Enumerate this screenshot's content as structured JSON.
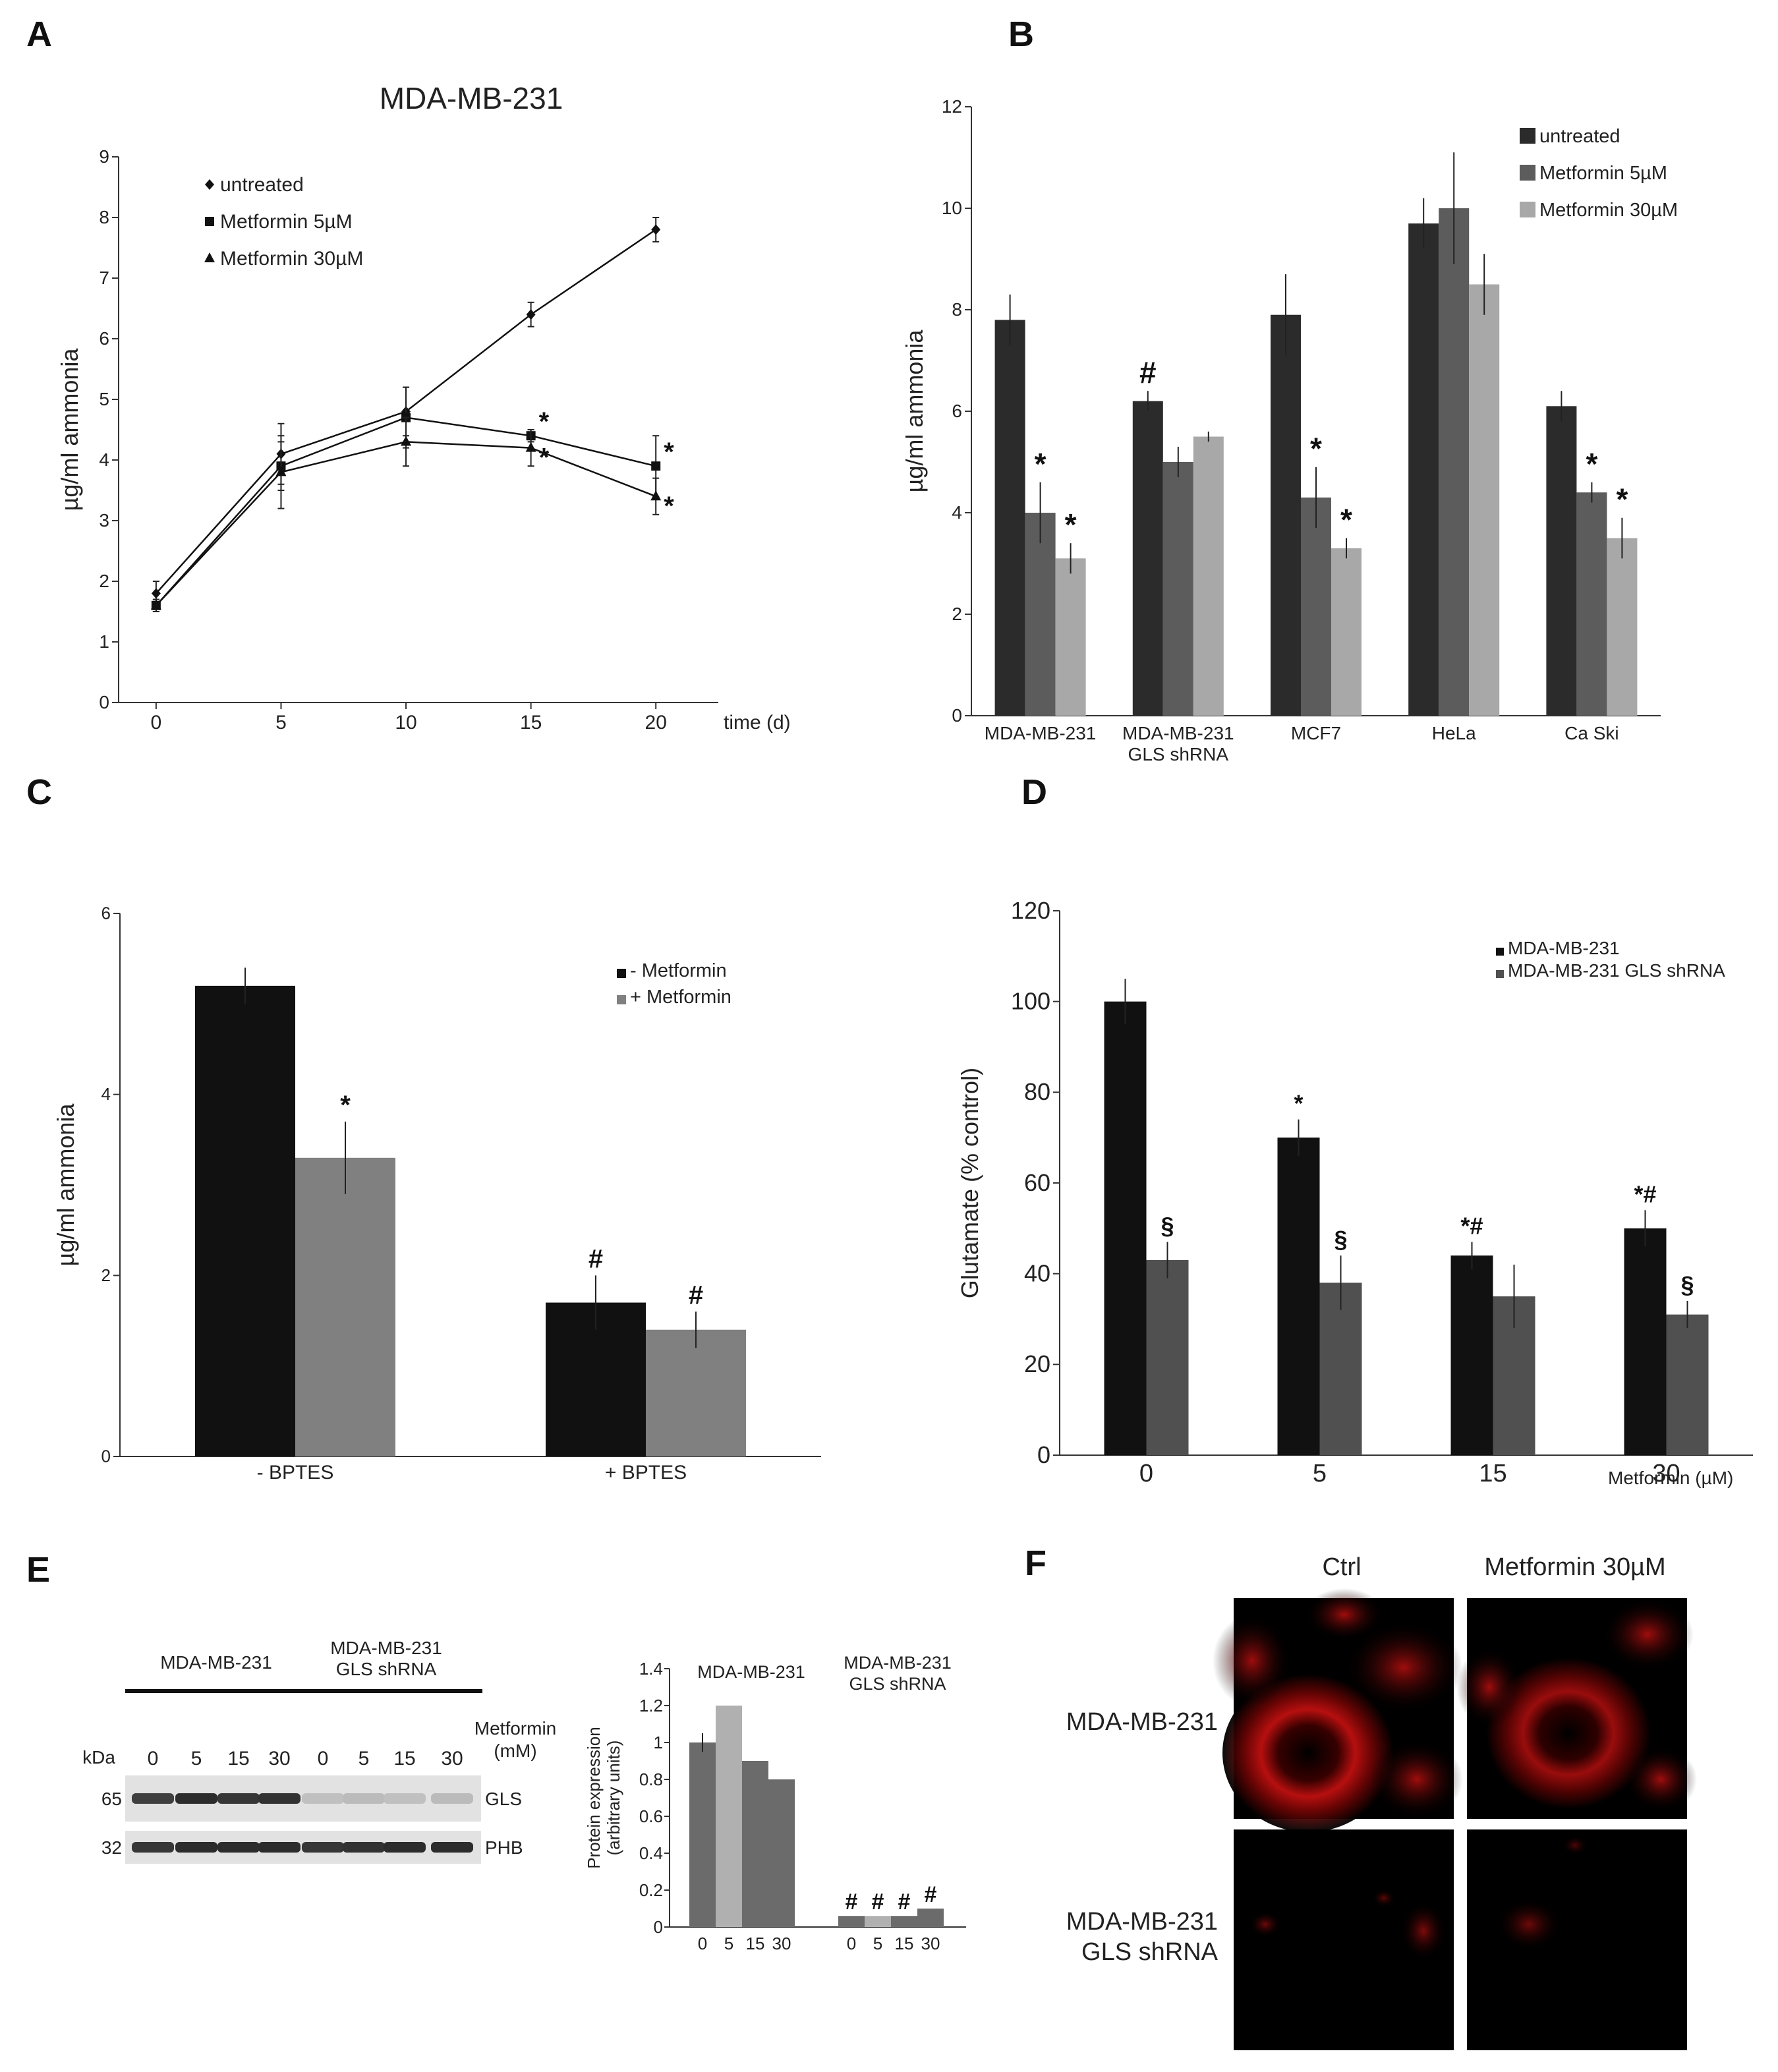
{
  "panel_letters": [
    "A",
    "B",
    "C",
    "D",
    "E",
    "F"
  ],
  "colors": {
    "black": "#111111",
    "dark": "#2b2b2b",
    "mid": "#5c5c5c",
    "light": "#a8a8a8",
    "d_grey": "#505050",
    "c_grey": "#808080",
    "e_dark": "#6b6b6b",
    "e_light": "#b0b0b0",
    "red": "#d01818"
  },
  "chart_data": [
    {
      "id": "A",
      "type": "line",
      "title": "MDA-MB-231",
      "xlabel": "time (d)",
      "ylabel": "µg/ml ammonia",
      "x": [
        0,
        5,
        10,
        15,
        20
      ],
      "xlim": [
        -1.5,
        22.5
      ],
      "ylim": [
        0,
        9
      ],
      "yticks": [
        0,
        1,
        2,
        3,
        4,
        5,
        6,
        7,
        8,
        9
      ],
      "legend_position": "top-left",
      "series": [
        {
          "name": "untreated",
          "marker": "diamond",
          "values": [
            1.8,
            4.1,
            4.8,
            6.4,
            7.8
          ],
          "errors": [
            0.2,
            0.5,
            0.4,
            0.2,
            0.2
          ],
          "annotations": [
            "",
            "",
            "",
            "",
            ""
          ]
        },
        {
          "name": "Metformin 5µM",
          "marker": "square",
          "values": [
            1.6,
            3.9,
            4.7,
            4.4,
            3.9
          ],
          "errors": [
            0.1,
            0.4,
            0.5,
            0.1,
            0.5
          ],
          "annotations": [
            "",
            "",
            "",
            "*",
            "*"
          ]
        },
        {
          "name": "Metformin 30µM",
          "marker": "triangle",
          "values": [
            1.6,
            3.8,
            4.3,
            4.2,
            3.4
          ],
          "errors": [
            0.1,
            0.6,
            0.4,
            0.3,
            0.3
          ],
          "annotations": [
            "",
            "",
            "",
            "*",
            "*"
          ]
        }
      ]
    },
    {
      "id": "B",
      "type": "bar",
      "xlabel": "",
      "ylabel": "µg/ml ammonia",
      "categories": [
        "MDA-MB-231",
        "MDA-MB-231\nGLS shRNA",
        "MCF7",
        "HeLa",
        "Ca Ski"
      ],
      "ylim": [
        0,
        12
      ],
      "yticks": [
        0,
        2,
        4,
        6,
        8,
        10,
        12
      ],
      "legend_position": "top-right",
      "series": [
        {
          "name": "untreated",
          "values": [
            7.8,
            6.2,
            7.9,
            9.7,
            6.1
          ],
          "errors": [
            0.5,
            0.2,
            0.8,
            0.5,
            0.3
          ],
          "annotations": [
            "",
            "#",
            "",
            "",
            ""
          ]
        },
        {
          "name": "Metformin 5µM",
          "values": [
            4.0,
            5.0,
            4.3,
            10.0,
            4.4
          ],
          "errors": [
            0.6,
            0.3,
            0.6,
            1.1,
            0.2
          ],
          "annotations": [
            "*",
            "",
            "*",
            "",
            "*"
          ]
        },
        {
          "name": "Metformin 30µM",
          "values": [
            3.1,
            5.5,
            3.3,
            8.5,
            3.5
          ],
          "errors": [
            0.3,
            0.1,
            0.2,
            0.6,
            0.4
          ],
          "annotations": [
            "*",
            "",
            "*",
            "",
            "*"
          ]
        }
      ]
    },
    {
      "id": "C",
      "type": "bar",
      "xlabel": "",
      "ylabel": "µg/ml ammonia",
      "categories": [
        "- BPTES",
        "+ BPTES"
      ],
      "ylim": [
        0,
        6
      ],
      "yticks": [
        0,
        2,
        4,
        6
      ],
      "legend_position": "top-right",
      "series": [
        {
          "name": "- Metformin",
          "values": [
            5.2,
            1.7
          ],
          "errors": [
            0.2,
            0.3
          ],
          "annotations": [
            "",
            "#"
          ]
        },
        {
          "name": "+ Metformin",
          "values": [
            3.3,
            1.4
          ],
          "errors": [
            0.4,
            0.2
          ],
          "annotations": [
            "*",
            "#"
          ]
        }
      ]
    },
    {
      "id": "D",
      "type": "bar",
      "xlabel": "Metformin (µM)",
      "ylabel": "Glutamate (% control)",
      "categories": [
        "0",
        "5",
        "15",
        "30"
      ],
      "ylim": [
        0,
        120
      ],
      "yticks": [
        0,
        20,
        40,
        60,
        80,
        100,
        120
      ],
      "legend_position": "top-right",
      "series": [
        {
          "name": "MDA-MB-231",
          "values": [
            100,
            70,
            44,
            50
          ],
          "errors": [
            5,
            4,
            3,
            4
          ],
          "annotations": [
            "",
            "*",
            "*#",
            "*#"
          ]
        },
        {
          "name": "MDA-MB-231 GLS shRNA",
          "values": [
            43,
            38,
            35,
            31
          ],
          "errors": [
            4,
            6,
            7,
            3
          ],
          "annotations": [
            "§",
            "§",
            "",
            "§"
          ]
        }
      ]
    },
    {
      "id": "E",
      "type": "bar",
      "xlabel": "",
      "ylabel": "Protein expression\n(arbitrary units)",
      "groups": [
        "MDA-MB-231",
        "MDA-MB-231\nGLS shRNA"
      ],
      "categories": [
        "0",
        "5",
        "15",
        "30"
      ],
      "ylim": [
        0,
        1.4
      ],
      "yticks": [
        0,
        0.2,
        0.4,
        0.6,
        0.8,
        1,
        1.2,
        1.4
      ],
      "series": [
        {
          "name": "MDA-MB-231",
          "values": [
            1.0,
            1.2,
            0.9,
            0.8
          ],
          "errors": [
            0.05,
            0.0,
            0.0,
            0.0
          ],
          "annotations": [
            "",
            "",
            "",
            ""
          ]
        },
        {
          "name": "MDA-MB-231 GLS shRNA",
          "values": [
            0.06,
            0.06,
            0.06,
            0.1
          ],
          "errors": [
            0,
            0,
            0,
            0
          ],
          "annotations": [
            "#",
            "#",
            "#",
            "#"
          ]
        }
      ]
    }
  ],
  "blot": {
    "group_labels": [
      "MDA-MB-231",
      "MDA-MB-231\nGLS shRNA"
    ],
    "kda_label": "kDa",
    "lanes": [
      "0",
      "5",
      "15",
      "30",
      "0",
      "5",
      "15",
      "30"
    ],
    "treatment_label": "Metformin\n(mM)",
    "bands": [
      {
        "kda": "65",
        "name": "GLS",
        "intensity": [
          0.85,
          0.95,
          0.9,
          0.92,
          0.15,
          0.18,
          0.15,
          0.18
        ]
      },
      {
        "kda": "32",
        "name": "PHB",
        "intensity": [
          0.9,
          0.95,
          0.95,
          0.95,
          0.9,
          0.92,
          0.95,
          0.95
        ]
      }
    ]
  },
  "microscopy": {
    "columns": [
      "Ctrl",
      "Metformin 30µM"
    ],
    "rows": [
      "MDA-MB-231",
      "MDA-MB-231\nGLS shRNA"
    ]
  }
}
